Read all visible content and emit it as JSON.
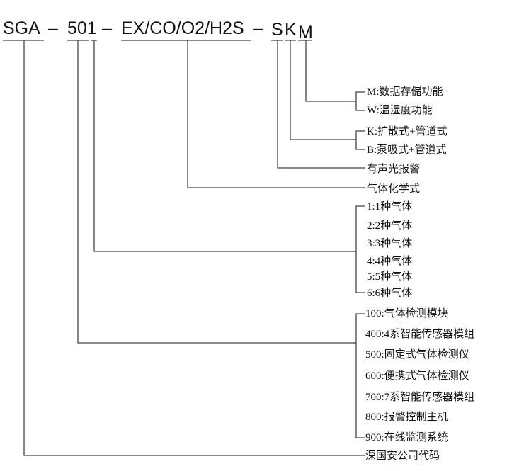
{
  "model_code": {
    "prefix": "SGA",
    "sep1": "–",
    "series": "501",
    "sep2": "–",
    "gases": "EX/CO/O2/H2S",
    "sep3": "–",
    "s": "S",
    "k": "K",
    "m": "M"
  },
  "options": {
    "m_group": [
      "M:数据存储功能",
      "W:温湿度功能"
    ],
    "k_group": [
      "K:扩散式+管道式",
      "B:泵吸式+管道式"
    ],
    "s_label": "有声光报警",
    "gas_label": "气体化学式",
    "gas_count": [
      "1:1种气体",
      "2:2种气体",
      "3:3种气体",
      "4:4种气体",
      "5:5种气体",
      "6:6种气体"
    ],
    "series_types": [
      "100:气体检测模块",
      "400:4系智能传感器模组",
      "500:固定式气体检测仪",
      "600:便携式气体检测仪",
      "700:7系智能传感器模组",
      "800:报警控制主机",
      "900:在线监测系统"
    ],
    "company_code": "深国安公司代码"
  }
}
